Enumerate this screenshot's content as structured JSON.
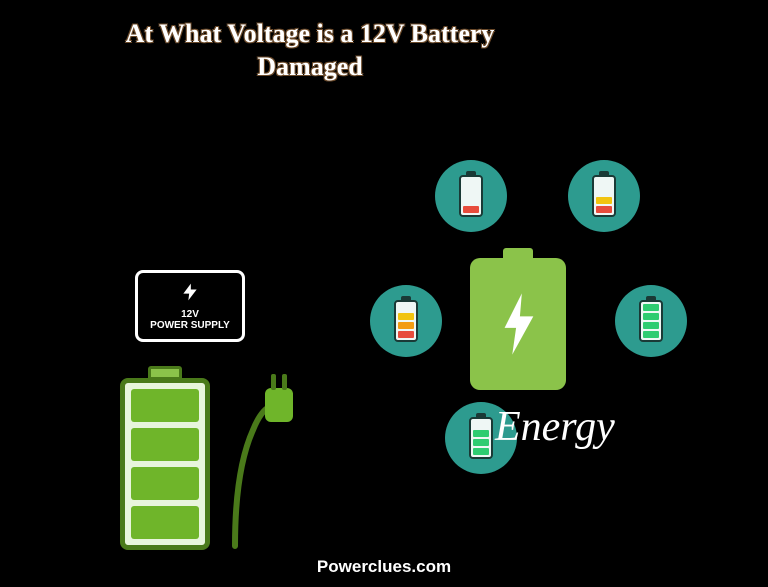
{
  "title": "At What Voltage is a 12V Battery Damaged",
  "power_supply": {
    "label_line1": "12V",
    "label_line2": "POWER SUPPLY"
  },
  "colors": {
    "background": "#000000",
    "title_text": "#ffffff",
    "orbit_bg": "#2d9b8f",
    "center_battery": "#8bc34a",
    "big_battery_border": "#4a7a1a",
    "big_battery_cell": "#6fb52a",
    "plug": "#6fb52a",
    "seg_red": "#e74c3c",
    "seg_orange": "#f39c12",
    "seg_yellow": "#f1c40f",
    "seg_green": "#2ecc71"
  },
  "energy_label": "Energy",
  "footer": "Powerclues.com",
  "orbit_batteries": {
    "tl": {
      "segments": [
        "#e74c3c",
        "off",
        "off",
        "off"
      ]
    },
    "tr": {
      "segments": [
        "#e74c3c",
        "#f1c40f",
        "off",
        "off"
      ]
    },
    "ml": {
      "segments": [
        "#e74c3c",
        "#f39c12",
        "#f1c40f",
        "off"
      ]
    },
    "mr": {
      "segments": [
        "#2ecc71",
        "#2ecc71",
        "#2ecc71",
        "#2ecc71"
      ]
    },
    "bl": {
      "segments": [
        "#2ecc71",
        "#2ecc71",
        "#2ecc71",
        "off"
      ]
    }
  },
  "big_battery": {
    "cells": 4
  }
}
